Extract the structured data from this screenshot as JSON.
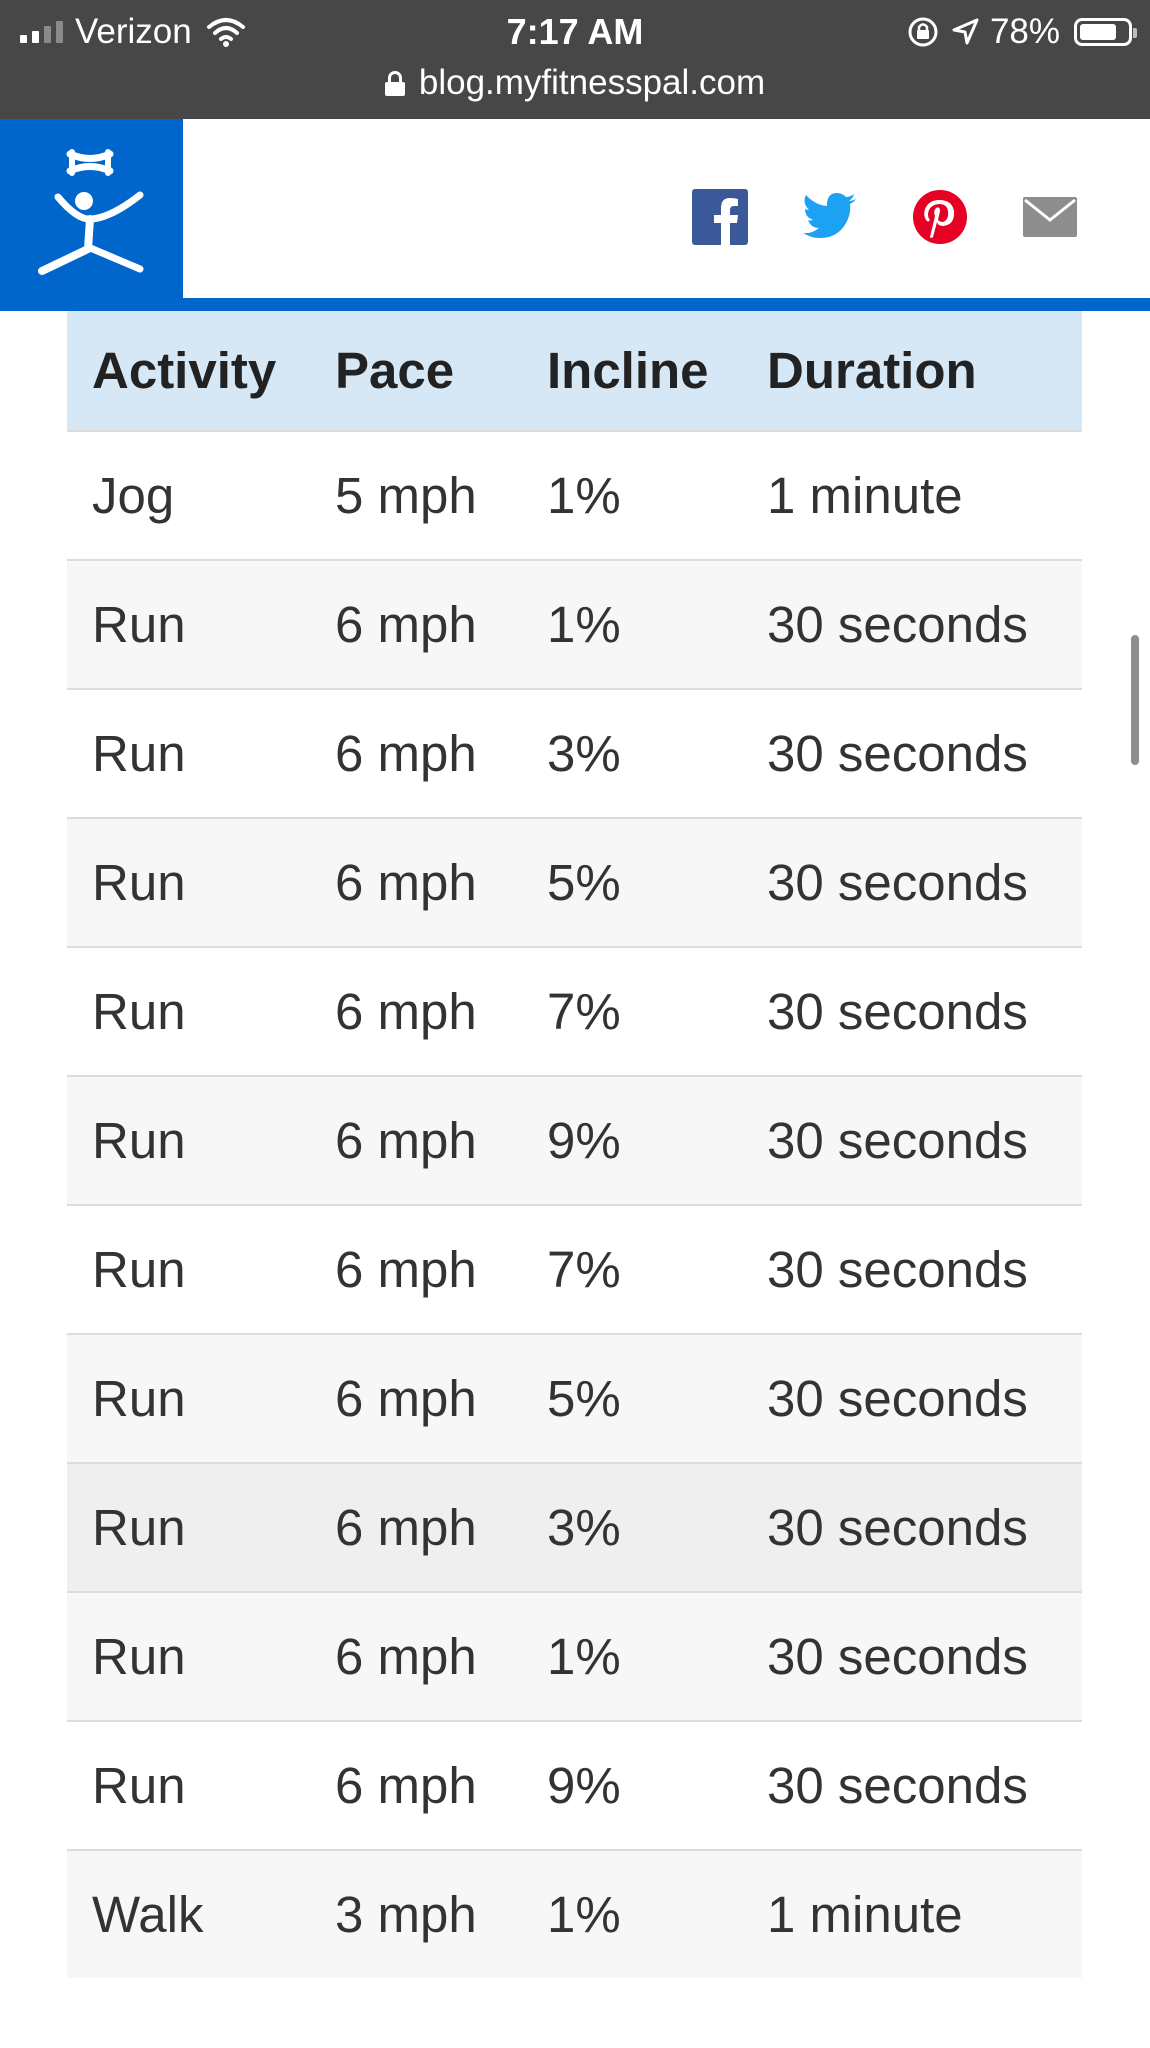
{
  "status_bar": {
    "carrier": "Verizon",
    "time": "7:17 AM",
    "battery": "78%",
    "battery_level": 0.78,
    "url": "blog.myfitnesspal.com"
  },
  "header": {
    "brand_color": "#0066cc",
    "share_icons": [
      "facebook-icon",
      "twitter-icon",
      "pinterest-icon",
      "email-icon"
    ]
  },
  "table": {
    "headers": [
      "Activity",
      "Pace",
      "Incline",
      "Duration"
    ],
    "rows": [
      [
        "Jog",
        "5 mph",
        "1%",
        "1 minute"
      ],
      [
        "Run",
        "6 mph",
        "1%",
        "30 seconds"
      ],
      [
        "Run",
        "6 mph",
        "3%",
        "30 seconds"
      ],
      [
        "Run",
        "6 mph",
        "5%",
        "30 seconds"
      ],
      [
        "Run",
        "6 mph",
        "7%",
        "30 seconds"
      ],
      [
        "Run",
        "6 mph",
        "9%",
        "30 seconds"
      ],
      [
        "Run",
        "6 mph",
        "7%",
        "30 seconds"
      ],
      [
        "Run",
        "6 mph",
        "5%",
        "30 seconds"
      ],
      [
        "Run",
        "6 mph",
        "3%",
        "30 seconds"
      ],
      [
        "Run",
        "6 mph",
        "1%",
        "30 seconds"
      ],
      [
        "Run",
        "6 mph",
        "9%",
        "30 seconds"
      ],
      [
        "Walk",
        "3 mph",
        "1%",
        "1 minute"
      ]
    ]
  }
}
